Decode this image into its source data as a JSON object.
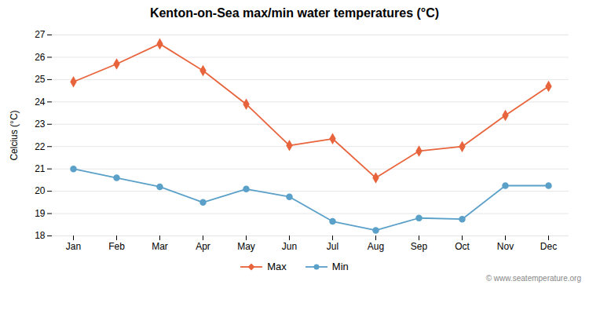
{
  "chart_data": {
    "type": "line",
    "title": "Kenton-on-Sea max/min water temperatures (°C)",
    "ylabel": "Celcius (°C)",
    "categories": [
      "Jan",
      "Feb",
      "Mar",
      "Apr",
      "May",
      "Jun",
      "Jul",
      "Aug",
      "Sep",
      "Oct",
      "Nov",
      "Dec"
    ],
    "series": [
      {
        "name": "Max",
        "color": "#e8643c",
        "marker": "diamond",
        "values": [
          24.9,
          25.7,
          26.6,
          25.4,
          23.9,
          22.05,
          22.35,
          20.6,
          21.8,
          22.0,
          23.4,
          24.7
        ]
      },
      {
        "name": "Min",
        "color": "#5aa0c8",
        "marker": "circle",
        "values": [
          21.0,
          20.6,
          20.2,
          19.5,
          20.1,
          19.75,
          18.65,
          18.25,
          18.8,
          18.75,
          20.25,
          20.25
        ]
      }
    ],
    "ylim": [
      18,
      27
    ],
    "yticks": [
      18,
      19,
      20,
      21,
      22,
      23,
      24,
      25,
      26,
      27
    ],
    "grid": "y",
    "legend": "bottom",
    "annotations": [
      "© www.seatemperature.org"
    ]
  }
}
